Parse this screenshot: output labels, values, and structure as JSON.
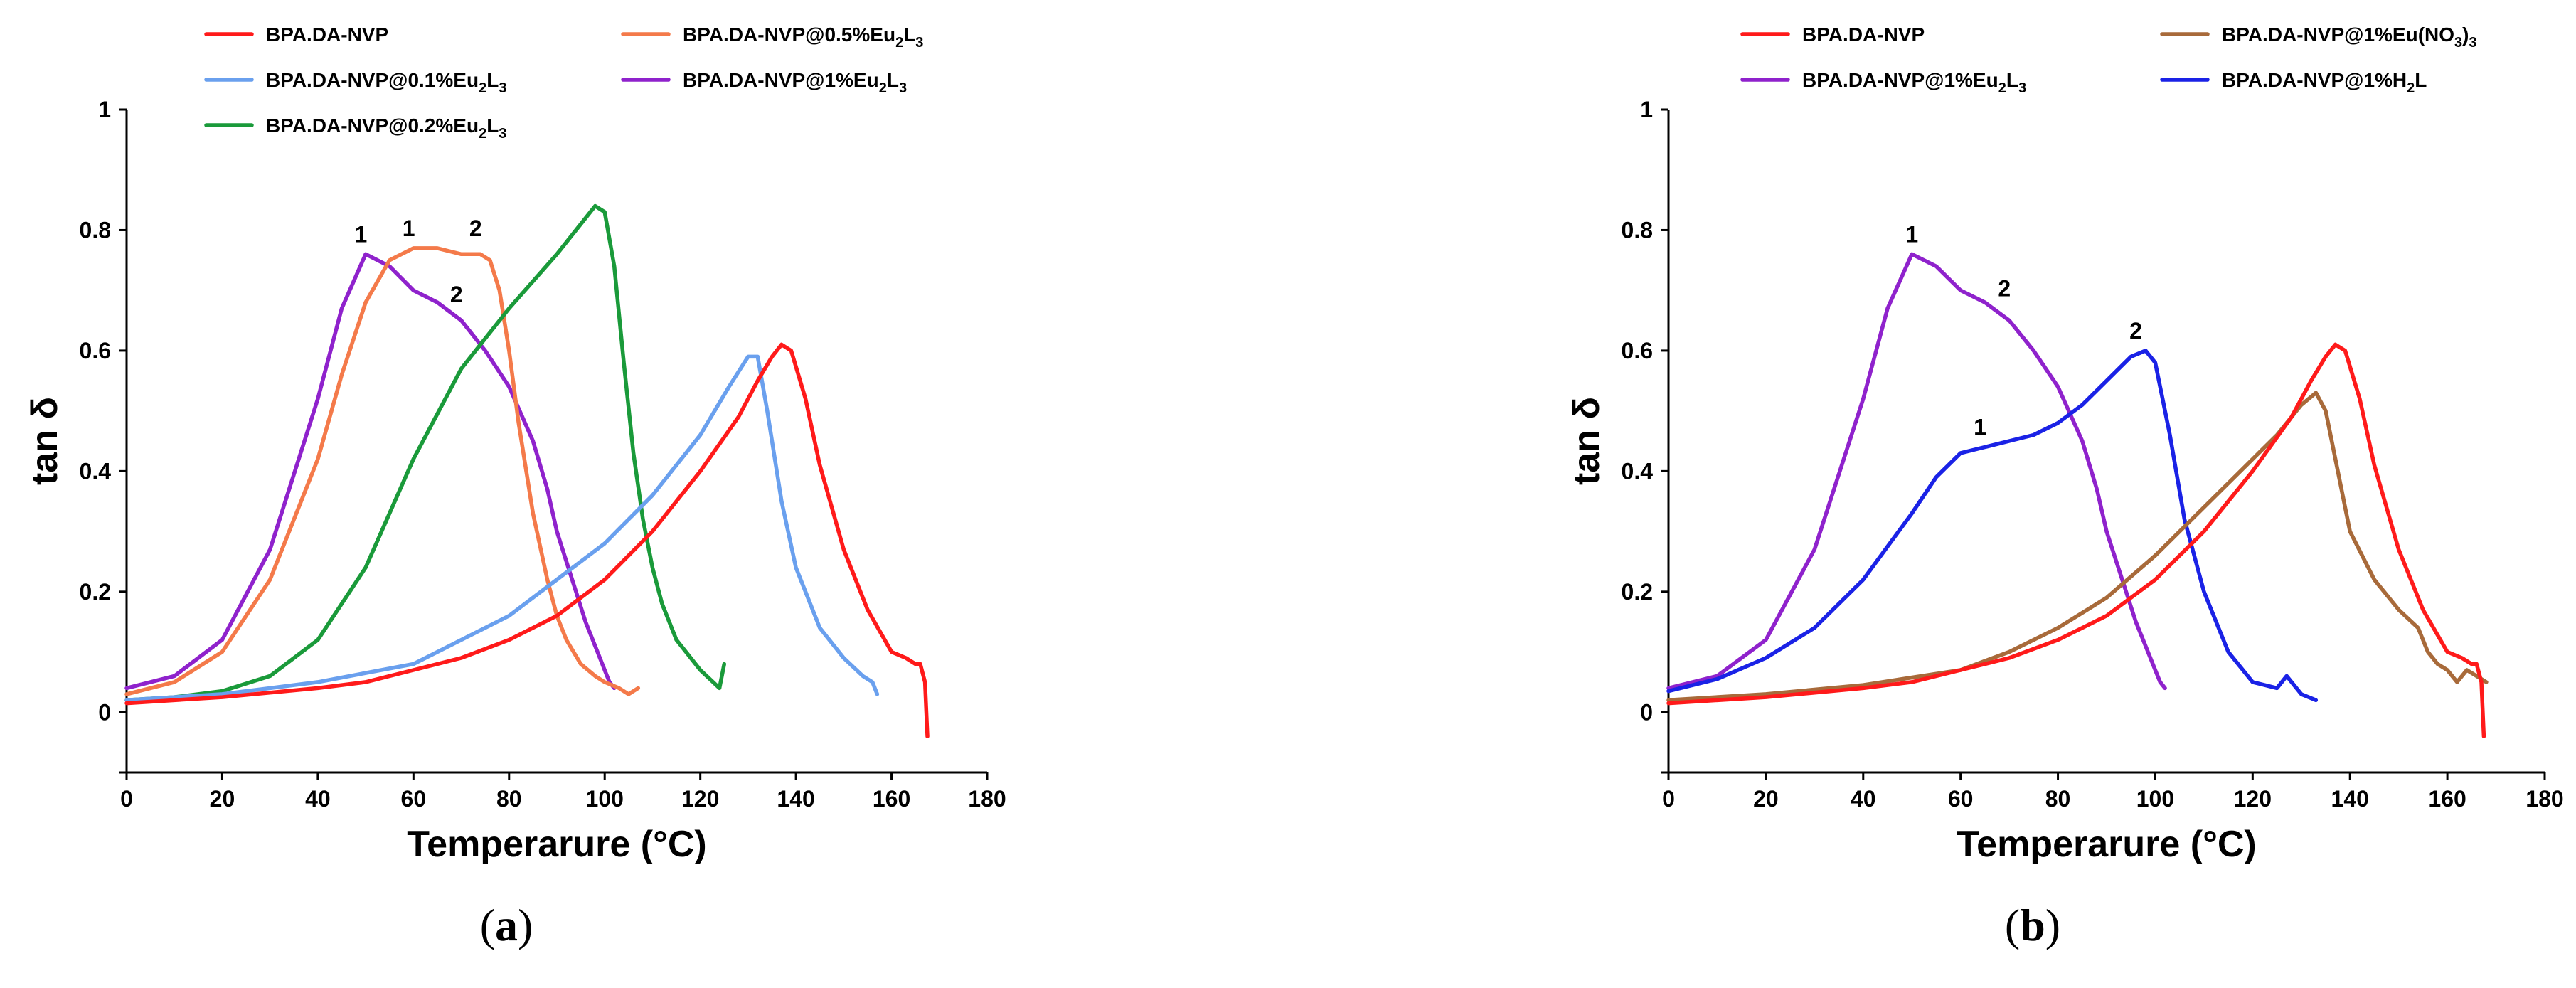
{
  "chart_data": [
    {
      "type": "line",
      "panel_label": "(a)",
      "panel_letter": "a",
      "xlabel": "Temperarure (°C)",
      "ylabel": "tan δ",
      "xlim": [
        0,
        180
      ],
      "ylim": [
        -0.1,
        1
      ],
      "x_ticks": [
        "0",
        "20",
        "40",
        "60",
        "80",
        "100",
        "120",
        "140",
        "160",
        "180"
      ],
      "y_ticks": [
        "0",
        "0.2",
        "0.4",
        "0.6",
        "0.8",
        "1"
      ],
      "legend": [
        {
          "name": "BPA.DA-NVP",
          "color": "#ff1a1a"
        },
        {
          "name": "BPA.DA-NVP@0.5%Eu2L3",
          "color": "#f47a4a"
        },
        {
          "name": "BPA.DA-NVP@0.1%Eu2L3",
          "color": "#6aa0ee"
        },
        {
          "name": "BPA.DA-NVP@1%Eu2L3",
          "color": "#8f22cc"
        },
        {
          "name": "BPA.DA-NVP@0.2%Eu2L3",
          "color": "#1a9a3a"
        }
      ],
      "series": [
        {
          "name": "BPA.DA-NVP@1%Eu2L3",
          "color": "#8f22cc",
          "x": [
            0,
            10,
            20,
            30,
            40,
            45,
            50,
            55,
            60,
            65,
            70,
            75,
            80,
            85,
            88,
            90,
            92,
            94,
            96,
            98,
            100,
            101,
            102
          ],
          "y": [
            0.04,
            0.06,
            0.12,
            0.27,
            0.52,
            0.67,
            0.76,
            0.74,
            0.7,
            0.68,
            0.65,
            0.6,
            0.54,
            0.45,
            0.37,
            0.3,
            0.25,
            0.2,
            0.15,
            0.11,
            0.07,
            0.05,
            0.04
          ]
        },
        {
          "name": "BPA.DA-NVP@0.5%Eu2L3",
          "color": "#f47a4a",
          "x": [
            0,
            10,
            20,
            30,
            40,
            45,
            50,
            55,
            60,
            65,
            70,
            74,
            76,
            78,
            80,
            82,
            85,
            88,
            90,
            92,
            95,
            98,
            100,
            103,
            105,
            107
          ],
          "y": [
            0.03,
            0.05,
            0.1,
            0.22,
            0.42,
            0.56,
            0.68,
            0.75,
            0.77,
            0.77,
            0.76,
            0.76,
            0.75,
            0.7,
            0.6,
            0.48,
            0.33,
            0.22,
            0.16,
            0.12,
            0.08,
            0.06,
            0.05,
            0.04,
            0.03,
            0.04
          ]
        },
        {
          "name": "BPA.DA-NVP@0.2%Eu2L3",
          "color": "#1a9a3a",
          "x": [
            0,
            10,
            20,
            30,
            40,
            50,
            60,
            70,
            80,
            90,
            95,
            98,
            100,
            102,
            104,
            106,
            108,
            110,
            112,
            115,
            120,
            124,
            125
          ],
          "y": [
            0.02,
            0.025,
            0.035,
            0.06,
            0.12,
            0.24,
            0.42,
            0.57,
            0.67,
            0.76,
            0.81,
            0.84,
            0.83,
            0.74,
            0.58,
            0.43,
            0.32,
            0.24,
            0.18,
            0.12,
            0.07,
            0.04,
            0.08
          ]
        },
        {
          "name": "BPA.DA-NVP@0.1%Eu2L3",
          "color": "#6aa0ee",
          "x": [
            0,
            20,
            40,
            60,
            80,
            100,
            110,
            120,
            126,
            130,
            132,
            134,
            137,
            140,
            145,
            150,
            154,
            156,
            157
          ],
          "y": [
            0.02,
            0.03,
            0.05,
            0.08,
            0.16,
            0.28,
            0.36,
            0.46,
            0.54,
            0.59,
            0.59,
            0.5,
            0.35,
            0.24,
            0.14,
            0.09,
            0.06,
            0.05,
            0.03
          ]
        },
        {
          "name": "BPA.DA-NVP",
          "color": "#ff1a1a",
          "x": [
            0,
            20,
            40,
            50,
            60,
            70,
            80,
            90,
            100,
            110,
            120,
            128,
            132,
            135,
            137,
            139,
            142,
            145,
            150,
            155,
            160,
            163,
            165,
            166,
            167,
            167.5
          ],
          "y": [
            0.015,
            0.025,
            0.04,
            0.05,
            0.07,
            0.09,
            0.12,
            0.16,
            0.22,
            0.3,
            0.4,
            0.49,
            0.55,
            0.59,
            0.61,
            0.6,
            0.52,
            0.41,
            0.27,
            0.17,
            0.1,
            0.09,
            0.08,
            0.08,
            0.05,
            -0.04
          ]
        }
      ],
      "annotations": [
        {
          "text": "1",
          "x": 49,
          "y": 0.78
        },
        {
          "text": "1",
          "x": 59,
          "y": 0.79
        },
        {
          "text": "2",
          "x": 73,
          "y": 0.79
        },
        {
          "text": "2",
          "x": 69,
          "y": 0.68
        }
      ]
    },
    {
      "type": "line",
      "panel_label": "(b)",
      "panel_letter": "b",
      "xlabel": "Temperarure (°C)",
      "ylabel": "tan δ",
      "xlim": [
        0,
        180
      ],
      "ylim": [
        -0.1,
        1
      ],
      "x_ticks": [
        "0",
        "20",
        "40",
        "60",
        "80",
        "100",
        "120",
        "140",
        "160",
        "180"
      ],
      "y_ticks": [
        "0",
        "0.2",
        "0.4",
        "0.6",
        "0.8",
        "1"
      ],
      "legend": [
        {
          "name": "BPA.DA-NVP",
          "color": "#ff1a1a"
        },
        {
          "name": "BPA.DA-NVP@1%Eu(NO3)3",
          "color": "#a86a3a"
        },
        {
          "name": "BPA.DA-NVP@1%Eu2L3",
          "color": "#8f22cc"
        },
        {
          "name": "BPA.DA-NVP@1%H2L",
          "color": "#1a22e6"
        }
      ],
      "series": [
        {
          "name": "BPA.DA-NVP@1%Eu2L3",
          "color": "#8f22cc",
          "x": [
            0,
            10,
            20,
            30,
            40,
            45,
            50,
            55,
            60,
            65,
            70,
            75,
            80,
            85,
            88,
            90,
            92,
            94,
            96,
            98,
            100,
            101,
            102
          ],
          "y": [
            0.04,
            0.06,
            0.12,
            0.27,
            0.52,
            0.67,
            0.76,
            0.74,
            0.7,
            0.68,
            0.65,
            0.6,
            0.54,
            0.45,
            0.37,
            0.3,
            0.25,
            0.2,
            0.15,
            0.11,
            0.07,
            0.05,
            0.04
          ]
        },
        {
          "name": "BPA.DA-NVP@1%H2L",
          "color": "#1a22e6",
          "x": [
            0,
            10,
            20,
            30,
            40,
            50,
            55,
            60,
            65,
            70,
            75,
            80,
            85,
            90,
            95,
            98,
            100,
            103,
            106,
            110,
            115,
            120,
            125,
            127,
            130,
            133
          ],
          "y": [
            0.035,
            0.055,
            0.09,
            0.14,
            0.22,
            0.33,
            0.39,
            0.43,
            0.44,
            0.45,
            0.46,
            0.48,
            0.51,
            0.55,
            0.59,
            0.6,
            0.58,
            0.46,
            0.32,
            0.2,
            0.1,
            0.05,
            0.04,
            0.06,
            0.03,
            0.02
          ]
        },
        {
          "name": "BPA.DA-NVP@1%Eu(NO3)3",
          "color": "#a86a3a",
          "x": [
            0,
            20,
            40,
            60,
            70,
            80,
            90,
            100,
            110,
            120,
            125,
            130,
            133,
            135,
            137,
            140,
            145,
            150,
            154,
            156,
            158,
            160,
            162,
            164,
            166,
            168
          ],
          "y": [
            0.02,
            0.03,
            0.045,
            0.07,
            0.1,
            0.14,
            0.19,
            0.26,
            0.34,
            0.42,
            0.46,
            0.51,
            0.53,
            0.5,
            0.42,
            0.3,
            0.22,
            0.17,
            0.14,
            0.1,
            0.08,
            0.07,
            0.05,
            0.07,
            0.06,
            0.05
          ]
        },
        {
          "name": "BPA.DA-NVP",
          "color": "#ff1a1a",
          "x": [
            0,
            20,
            40,
            50,
            60,
            70,
            80,
            90,
            100,
            110,
            120,
            128,
            132,
            135,
            137,
            139,
            142,
            145,
            150,
            155,
            160,
            163,
            165,
            166,
            167,
            167.5
          ],
          "y": [
            0.015,
            0.025,
            0.04,
            0.05,
            0.07,
            0.09,
            0.12,
            0.16,
            0.22,
            0.3,
            0.4,
            0.49,
            0.55,
            0.59,
            0.61,
            0.6,
            0.52,
            0.41,
            0.27,
            0.17,
            0.1,
            0.09,
            0.08,
            0.08,
            0.05,
            -0.04
          ]
        }
      ],
      "annotations": [
        {
          "text": "1",
          "x": 50,
          "y": 0.78
        },
        {
          "text": "2",
          "x": 69,
          "y": 0.69
        },
        {
          "text": "1",
          "x": 64,
          "y": 0.46
        },
        {
          "text": "2",
          "x": 96,
          "y": 0.62
        }
      ]
    }
  ]
}
